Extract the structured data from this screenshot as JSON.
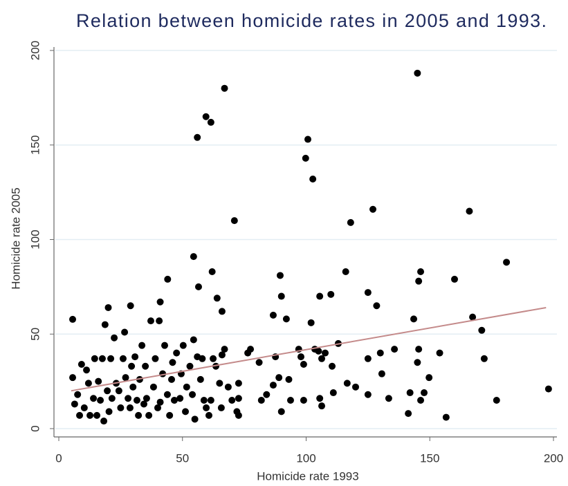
{
  "chart_data": {
    "type": "scatter",
    "title": "Relation between homicide rates in 2005 and 1993.",
    "x_label": "Homicide rate 1993",
    "y_label": "Homicide rate 2005",
    "color": "#000000",
    "x": [
      5.6,
      5.6,
      20,
      29,
      41,
      44,
      56,
      59.5,
      61.5,
      67,
      54.5,
      62,
      71,
      56.5,
      64,
      66,
      89.5,
      90,
      92,
      99.8,
      100.7,
      102.7,
      102,
      105.5,
      110,
      118,
      127,
      116,
      125,
      128.5,
      145,
      143.5,
      145.5,
      146.3,
      160,
      166,
      167.3,
      181,
      171,
      172,
      177,
      198,
      156.6,
      154,
      149.7,
      147.7,
      146.3,
      145.5,
      145,
      141.3,
      142,
      135.7,
      133.4,
      130,
      130.6,
      125,
      125,
      120,
      116.6,
      113,
      110.5,
      111,
      107.7,
      106.3,
      105,
      105.5,
      106.3,
      103.5,
      99,
      97.9,
      97,
      99,
      93,
      93.7,
      90,
      89,
      87.6,
      86.7,
      86.7,
      84,
      81.9,
      81,
      77.5,
      76.4,
      72.7,
      72.7,
      72.7,
      72,
      70,
      68.5,
      67,
      66,
      65.7,
      65,
      63.5,
      62.4,
      61.5,
      60.7,
      59.6,
      58.7,
      58,
      57.3,
      56,
      55,
      54.5,
      54,
      53,
      51.7,
      51.2,
      50.3,
      49.5,
      49,
      47.6,
      46.7,
      46,
      45.6,
      44.8,
      43.9,
      42.8,
      42,
      41,
      40.6,
      40,
      39,
      38.3,
      37.2,
      36.4,
      35.5,
      35,
      34.4,
      33.6,
      32.7,
      32.2,
      31.6,
      30.8,
      30,
      29.4,
      28.8,
      28,
      27,
      26.6,
      26,
      25,
      24.3,
      23.2,
      22.4,
      21.5,
      21,
      20.3,
      19.6,
      18.7,
      18.2,
      17.6,
      16.8,
      16,
      15.4,
      14.5,
      14,
      12.6,
      12,
      11.2,
      10.3,
      9.2,
      8.4,
      7.6,
      6.4
    ],
    "values": [
      57.8,
      27,
      64,
      65,
      67,
      79,
      154,
      165,
      162,
      180,
      91,
      83,
      110,
      75,
      69,
      62,
      81,
      70,
      58,
      143,
      153,
      132,
      56,
      70,
      71,
      109,
      116,
      83,
      72,
      65,
      188,
      58,
      78,
      83,
      79,
      115,
      59,
      88,
      52,
      37,
      15,
      21,
      6,
      40,
      27,
      19,
      15,
      42,
      35,
      8,
      19,
      42,
      16,
      40,
      29,
      37,
      18,
      22,
      24,
      45,
      33,
      19,
      40,
      37,
      41,
      16,
      12,
      42,
      34,
      38,
      42,
      15,
      26,
      15,
      9,
      27,
      38,
      60,
      23,
      18,
      15,
      35,
      42,
      40,
      16,
      24,
      7,
      9,
      15,
      22,
      42,
      39,
      11,
      24,
      33,
      37,
      15,
      7,
      11,
      15,
      37,
      26,
      38,
      5,
      47,
      18,
      33,
      22,
      9,
      44,
      29,
      16,
      40,
      15,
      35,
      26,
      7,
      18,
      44,
      29,
      14,
      57,
      11,
      37,
      22,
      57,
      7,
      16,
      33,
      13,
      44,
      26,
      7,
      15,
      38,
      22,
      33,
      11,
      16,
      27,
      51,
      37,
      11,
      20,
      24,
      48,
      16,
      37,
      9,
      20,
      55,
      4,
      37,
      15,
      25,
      7,
      37,
      16,
      7,
      24,
      31,
      11,
      34,
      7,
      18,
      13
    ],
    "fit_line": {
      "x": [
        5,
        197
      ],
      "values": [
        20,
        64
      ],
      "color": "#c48a8a"
    },
    "xlim": [
      0,
      200
    ],
    "ylim": [
      0,
      200
    ],
    "xticks": [
      0,
      50,
      100,
      150,
      200
    ],
    "yticks": [
      0,
      50,
      100,
      150,
      200
    ],
    "grid": true
  }
}
